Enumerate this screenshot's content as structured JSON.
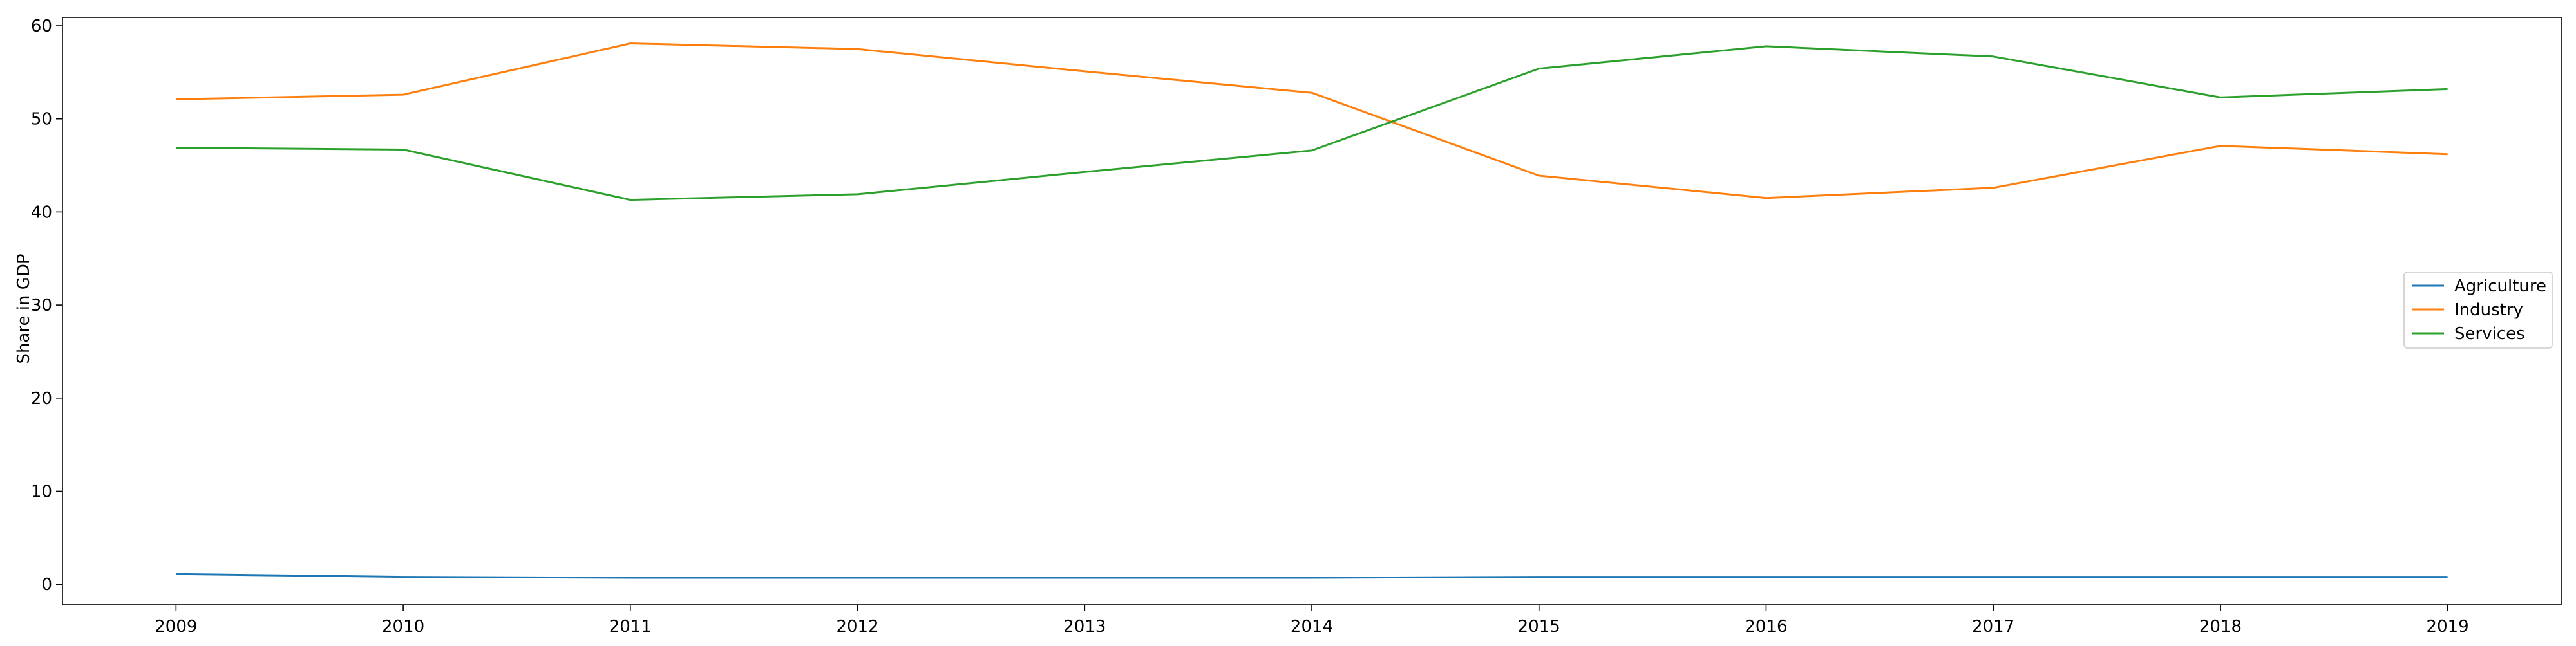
{
  "chart_data": {
    "type": "line",
    "title": "",
    "xlabel": "",
    "ylabel": "Share in GDP",
    "x": [
      2009,
      2010,
      2011,
      2012,
      2013,
      2014,
      2015,
      2016,
      2017,
      2018,
      2019
    ],
    "x_ticks": [
      "2009",
      "2010",
      "2011",
      "2012",
      "2013",
      "2014",
      "2015",
      "2016",
      "2017",
      "2018",
      "2019"
    ],
    "y_ticks": [
      0,
      10,
      20,
      30,
      40,
      50,
      60
    ],
    "xlim": [
      2008.5,
      2019.5
    ],
    "ylim": [
      -2.2,
      60.9
    ],
    "grid": false,
    "legend_position": "center-right",
    "series": [
      {
        "name": "Agriculture",
        "color": "#1f77b4",
        "values": [
          1.1,
          0.8,
          0.7,
          0.7,
          0.7,
          0.7,
          0.8,
          0.8,
          0.8,
          0.8,
          0.8
        ]
      },
      {
        "name": "Industry",
        "color": "#ff7f0e",
        "values": [
          52.1,
          52.6,
          58.1,
          57.5,
          55.1,
          52.8,
          43.9,
          41.5,
          42.6,
          47.1,
          46.2
        ]
      },
      {
        "name": "Services",
        "color": "#2ca02c",
        "values": [
          46.9,
          46.7,
          41.3,
          41.9,
          44.3,
          46.6,
          55.4,
          57.8,
          56.7,
          52.3,
          53.2
        ]
      }
    ]
  }
}
